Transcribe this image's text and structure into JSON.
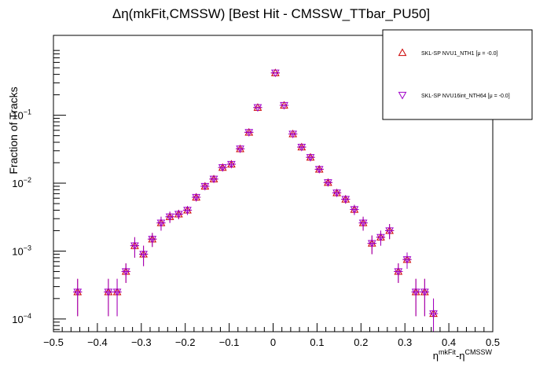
{
  "chart_data": {
    "type": "scatter",
    "title": "Δη(mkFit,CMSSW) [Best Hit - CMSSW_TTbar_PU50]",
    "xlabel": {
      "base": "η",
      "sup1": "mkFit",
      "mid": "-η",
      "sup2": "CMSSW"
    },
    "ylabel": "Fraction of Tracks",
    "xlim": [
      -0.5,
      0.5
    ],
    "ylim": [
      6.5e-05,
      1.5
    ],
    "yscale": "log",
    "grid": false,
    "legend_position": "top-right",
    "x_ticks": [
      {
        "v": -0.5,
        "label": "−0.5"
      },
      {
        "v": -0.4,
        "label": "−0.4"
      },
      {
        "v": -0.3,
        "label": "−0.3"
      },
      {
        "v": -0.2,
        "label": "−0.2"
      },
      {
        "v": -0.1,
        "label": "−0.1"
      },
      {
        "v": 0,
        "label": "0"
      },
      {
        "v": 0.1,
        "label": "0.1"
      },
      {
        "v": 0.2,
        "label": "0.2"
      },
      {
        "v": 0.3,
        "label": "0.3"
      },
      {
        "v": 0.4,
        "label": "0.4"
      },
      {
        "v": 0.5,
        "label": "0.5"
      }
    ],
    "y_ticks": [
      {
        "v": 0.0001,
        "base": "10",
        "exp": "−4"
      },
      {
        "v": 0.001,
        "base": "10",
        "exp": "−3"
      },
      {
        "v": 0.01,
        "base": "10",
        "exp": "−2"
      },
      {
        "v": 0.1,
        "base": "10",
        "exp": "−1"
      }
    ],
    "series": [
      {
        "name": "SKL-SP NVU1_NTH1 [μ = -0.0]",
        "marker": "triangle-up",
        "color": "#cc0000",
        "x": [
          -0.445,
          -0.375,
          -0.355,
          -0.335,
          -0.315,
          -0.295,
          -0.275,
          -0.255,
          -0.235,
          -0.215,
          -0.195,
          -0.175,
          -0.155,
          -0.135,
          -0.115,
          -0.095,
          -0.075,
          -0.055,
          -0.035,
          -0.015,
          0.005,
          0.025,
          0.045,
          0.065,
          0.085,
          0.105,
          0.125,
          0.145,
          0.165,
          0.185,
          0.205,
          0.225,
          0.245,
          0.265,
          0.285,
          0.305,
          0.325,
          0.345,
          0.365,
          0.385,
          0.405
        ],
        "y": [
          0.00025,
          0.00025,
          0.00025,
          0.0005,
          0.0012,
          0.0009,
          0.0015,
          0.0026,
          0.0032,
          0.0035,
          0.004,
          0.0062,
          0.009,
          0.0115,
          0.017,
          0.019,
          0.032,
          0.056,
          0.13,
          0.0,
          0.42,
          0.14,
          0.053,
          0.034,
          0.024,
          0.016,
          0.0102,
          0.0072,
          0.0058,
          0.0041,
          0.0026,
          0.0013,
          0.0016,
          0.002,
          0.0005,
          0.00075,
          0.00025,
          0.00025,
          0.00012,
          0.0,
          0.0
        ],
        "yerr": [
          0.00014,
          0.00014,
          0.00014,
          0.00016,
          0.0004,
          0.0003,
          0.00035,
          0.0006,
          0.0006,
          0.00055,
          0.0006,
          0.0008,
          0.001,
          0.0011,
          0.0014,
          0.0015,
          0.002,
          0.0028,
          0.0042,
          0,
          0.008,
          0.0044,
          0.0027,
          0.0021,
          0.0018,
          0.0015,
          0.0011,
          0.0009,
          0.0008,
          0.0007,
          0.0006,
          0.0004,
          0.0004,
          0.0005,
          0.00016,
          0.0002,
          0.00014,
          0.00014,
          8e-05,
          0,
          0
        ]
      },
      {
        "name": "SKL-SP NVU16int_NTH64 [μ = -0.0]",
        "marker": "triangle-down",
        "color": "#a000c8",
        "x": [
          -0.445,
          -0.375,
          -0.355,
          -0.335,
          -0.315,
          -0.295,
          -0.275,
          -0.255,
          -0.235,
          -0.215,
          -0.195,
          -0.175,
          -0.155,
          -0.135,
          -0.115,
          -0.095,
          -0.075,
          -0.055,
          -0.035,
          -0.015,
          0.005,
          0.025,
          0.045,
          0.065,
          0.085,
          0.105,
          0.125,
          0.145,
          0.165,
          0.185,
          0.205,
          0.225,
          0.245,
          0.265,
          0.285,
          0.305,
          0.325,
          0.345,
          0.365,
          0.385,
          0.405
        ],
        "y": [
          0.00025,
          0.00025,
          0.00025,
          0.0005,
          0.0012,
          0.0009,
          0.0015,
          0.0026,
          0.0032,
          0.0035,
          0.004,
          0.0062,
          0.009,
          0.0115,
          0.017,
          0.019,
          0.032,
          0.056,
          0.13,
          0.0,
          0.42,
          0.14,
          0.053,
          0.034,
          0.024,
          0.016,
          0.0102,
          0.0072,
          0.0058,
          0.0041,
          0.0026,
          0.0013,
          0.0016,
          0.002,
          0.0005,
          0.00075,
          0.00025,
          0.00025,
          0.00012,
          0.0,
          0.0
        ],
        "yerr": [
          0.00014,
          0.00014,
          0.00014,
          0.00016,
          0.0004,
          0.0003,
          0.00035,
          0.0006,
          0.0006,
          0.00055,
          0.0006,
          0.0008,
          0.001,
          0.0011,
          0.0014,
          0.0015,
          0.002,
          0.0028,
          0.0042,
          0,
          0.008,
          0.0044,
          0.0027,
          0.0021,
          0.0018,
          0.0015,
          0.0011,
          0.0009,
          0.0008,
          0.0007,
          0.0006,
          0.0004,
          0.0004,
          0.0005,
          0.00016,
          0.0002,
          0.00014,
          0.00014,
          8e-05,
          0,
          0
        ]
      }
    ]
  }
}
